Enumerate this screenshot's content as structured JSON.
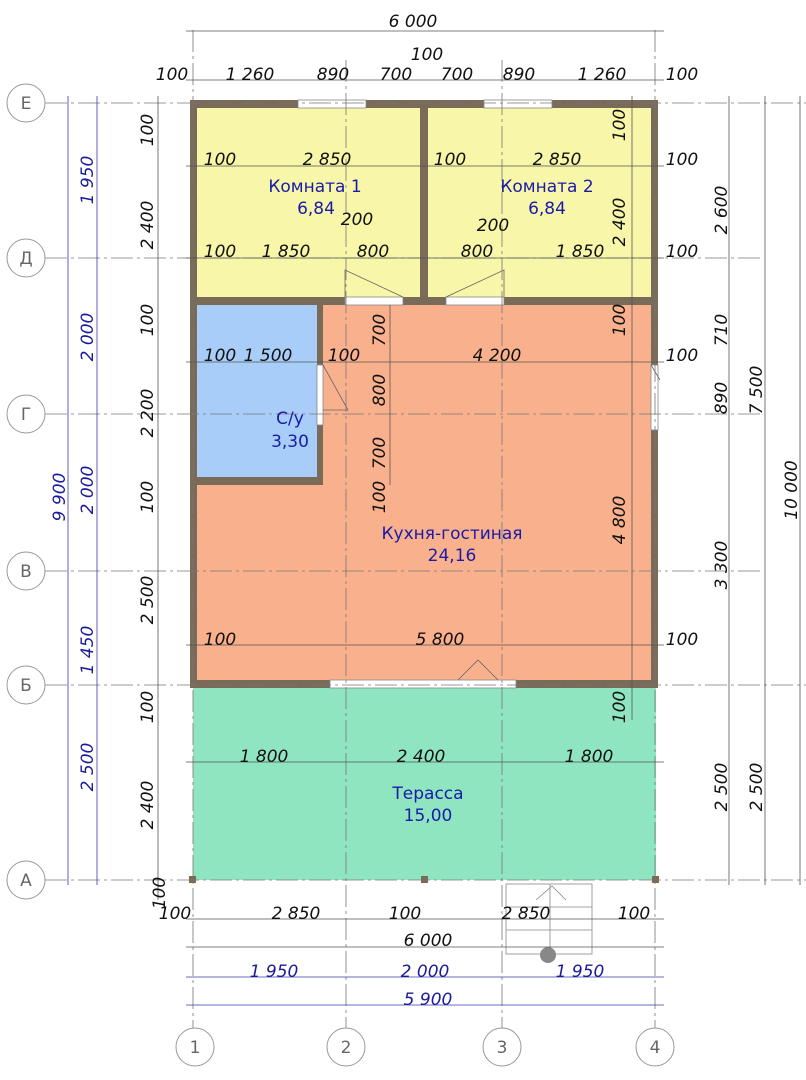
{
  "axes": {
    "rows": [
      "Е",
      "Д",
      "Г",
      "В",
      "Б",
      "А"
    ],
    "columns": [
      "1",
      "2",
      "3",
      "4"
    ]
  },
  "rooms": [
    {
      "name": "Комната 1",
      "area": "6,84",
      "color": "#f8f6a8"
    },
    {
      "name": "Комната 2",
      "area": "6,84",
      "color": "#f8f6a8"
    },
    {
      "name": "С/у",
      "area": "3,30",
      "color": "#a8cdf8"
    },
    {
      "name": "Кухня-гостиная",
      "area": "24,16",
      "color": "#f9b18d"
    },
    {
      "name": "Терасса",
      "area": "15,00",
      "color": "#8fe5c0"
    }
  ],
  "colors": {
    "wall": "#7a6a58",
    "blue_dimension": "#1a1a9a"
  },
  "dimensions": [
    "6 000",
    "100",
    "100",
    "1 260",
    "890",
    "700",
    "700",
    "890",
    "1 260",
    "100",
    "100",
    "2 850",
    "100",
    "2 850",
    "100",
    "100",
    "1 850",
    "800",
    "800",
    "1 850",
    "100",
    "200",
    "200",
    "100",
    "1 500",
    "100",
    "4 200",
    "100",
    "100",
    "5 800",
    "100",
    "1 800",
    "2 400",
    "1 800",
    "100",
    "2 850",
    "100",
    "2 850",
    "100",
    "6 000",
    "100",
    "2 400",
    "100",
    "2 200",
    "100",
    "2 500",
    "100",
    "2 400",
    "100",
    "100",
    "2 400",
    "100",
    "4 800",
    "100",
    "700",
    "800",
    "700",
    "100",
    "2 600",
    "710",
    "890",
    "3 300",
    "2 500",
    "7 500",
    "2 500",
    "10 000"
  ],
  "axis_dimensions": [
    "1 950",
    "2 000",
    "1 950",
    "5 900",
    "1 950",
    "2 000",
    "2 000",
    "1 450",
    "2 500",
    "9 900"
  ]
}
